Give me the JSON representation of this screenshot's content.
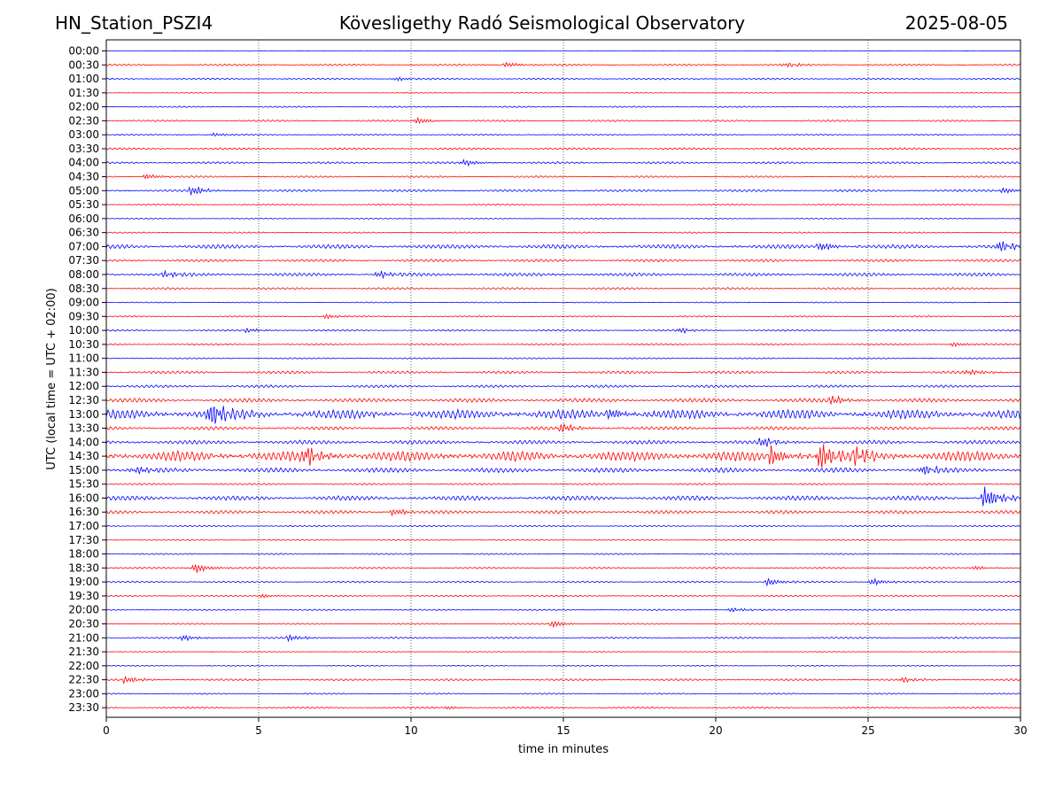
{
  "header": {
    "station": "HN_Station_PSZI4",
    "title": "Kövesligethy Radó Seismological Observatory",
    "date": "2025-08-05"
  },
  "chart_data": {
    "type": "line",
    "title": "Kövesligethy Radó Seismological Observatory",
    "xlabel": "time in minutes",
    "ylabel": "UTC (local time = UTC + 02:00)",
    "xlim": [
      0,
      30
    ],
    "x_ticks": [
      0,
      5,
      10,
      15,
      20,
      25,
      30
    ],
    "x_tick_labels": [
      "0",
      "5",
      "10",
      "15",
      "20",
      "25",
      "30"
    ],
    "grid": "vertical dotted at each x tick",
    "row_labels": [
      "00:00",
      "00:30",
      "01:00",
      "01:30",
      "02:00",
      "02:30",
      "03:00",
      "03:30",
      "04:00",
      "04:30",
      "05:00",
      "05:30",
      "06:00",
      "06:30",
      "07:00",
      "07:30",
      "08:00",
      "08:30",
      "09:00",
      "09:30",
      "10:00",
      "10:30",
      "11:00",
      "11:30",
      "12:00",
      "12:30",
      "13:00",
      "13:30",
      "14:00",
      "14:30",
      "15:00",
      "15:30",
      "16:00",
      "16:30",
      "17:00",
      "17:30",
      "18:00",
      "18:30",
      "19:00",
      "19:30",
      "20:00",
      "20:30",
      "21:00",
      "21:30",
      "22:00",
      "22:30",
      "23:00",
      "23:30"
    ],
    "trace_colors": [
      "#0000ff",
      "#ff0000"
    ],
    "trace_activity": [
      0.02,
      0.05,
      0.05,
      0.02,
      0.04,
      0.05,
      0.04,
      0.06,
      0.06,
      0.05,
      0.07,
      0.04,
      0.03,
      0.04,
      0.12,
      0.08,
      0.1,
      0.06,
      0.03,
      0.04,
      0.05,
      0.05,
      0.04,
      0.08,
      0.08,
      0.12,
      0.28,
      0.1,
      0.12,
      0.3,
      0.14,
      0.05,
      0.14,
      0.1,
      0.04,
      0.03,
      0.04,
      0.05,
      0.05,
      0.04,
      0.04,
      0.04,
      0.05,
      0.02,
      0.03,
      0.06,
      0.04,
      0.05
    ],
    "events": [
      {
        "row": 1,
        "x": 13.1,
        "amp": 0.22
      },
      {
        "row": 1,
        "x": 22.3,
        "amp": 0.2
      },
      {
        "row": 2,
        "x": 9.5,
        "amp": 0.15
      },
      {
        "row": 5,
        "x": 10.2,
        "amp": 0.25
      },
      {
        "row": 6,
        "x": 3.5,
        "amp": 0.18
      },
      {
        "row": 8,
        "x": 11.7,
        "amp": 0.3
      },
      {
        "row": 9,
        "x": 1.3,
        "amp": 0.22
      },
      {
        "row": 10,
        "x": 2.8,
        "amp": 0.35
      },
      {
        "row": 10,
        "x": 29.4,
        "amp": 0.3
      },
      {
        "row": 14,
        "x": 23.4,
        "amp": 0.4
      },
      {
        "row": 14,
        "x": 29.3,
        "amp": 0.45
      },
      {
        "row": 16,
        "x": 1.9,
        "amp": 0.3
      },
      {
        "row": 16,
        "x": 8.9,
        "amp": 0.3
      },
      {
        "row": 19,
        "x": 7.2,
        "amp": 0.2
      },
      {
        "row": 20,
        "x": 4.6,
        "amp": 0.2
      },
      {
        "row": 20,
        "x": 18.8,
        "amp": 0.2
      },
      {
        "row": 21,
        "x": 27.8,
        "amp": 0.22
      },
      {
        "row": 23,
        "x": 28.3,
        "amp": 0.25
      },
      {
        "row": 25,
        "x": 23.8,
        "amp": 0.35
      },
      {
        "row": 26,
        "x": 3.4,
        "amp": 1.0
      },
      {
        "row": 26,
        "x": 16.5,
        "amp": 0.5
      },
      {
        "row": 27,
        "x": 14.9,
        "amp": 0.45
      },
      {
        "row": 28,
        "x": 21.5,
        "amp": 0.45
      },
      {
        "row": 29,
        "x": 6.5,
        "amp": 0.75
      },
      {
        "row": 29,
        "x": 21.8,
        "amp": 0.75
      },
      {
        "row": 29,
        "x": 23.4,
        "amp": 1.1
      },
      {
        "row": 29,
        "x": 24.6,
        "amp": 0.65
      },
      {
        "row": 30,
        "x": 0.9,
        "amp": 0.35
      },
      {
        "row": 30,
        "x": 26.8,
        "amp": 0.4
      },
      {
        "row": 32,
        "x": 28.8,
        "amp": 0.9
      },
      {
        "row": 33,
        "x": 9.4,
        "amp": 0.35
      },
      {
        "row": 37,
        "x": 2.9,
        "amp": 0.45
      },
      {
        "row": 37,
        "x": 28.5,
        "amp": 0.18
      },
      {
        "row": 38,
        "x": 21.7,
        "amp": 0.3
      },
      {
        "row": 38,
        "x": 25.1,
        "amp": 0.3
      },
      {
        "row": 39,
        "x": 5.1,
        "amp": 0.15
      },
      {
        "row": 40,
        "x": 20.5,
        "amp": 0.22
      },
      {
        "row": 41,
        "x": 14.6,
        "amp": 0.25
      },
      {
        "row": 42,
        "x": 6.0,
        "amp": 0.25
      },
      {
        "row": 42,
        "x": 2.5,
        "amp": 0.25
      },
      {
        "row": 45,
        "x": 0.6,
        "amp": 0.3
      },
      {
        "row": 45,
        "x": 26.1,
        "amp": 0.22
      },
      {
        "row": 47,
        "x": 11.2,
        "amp": 0.15
      }
    ]
  }
}
